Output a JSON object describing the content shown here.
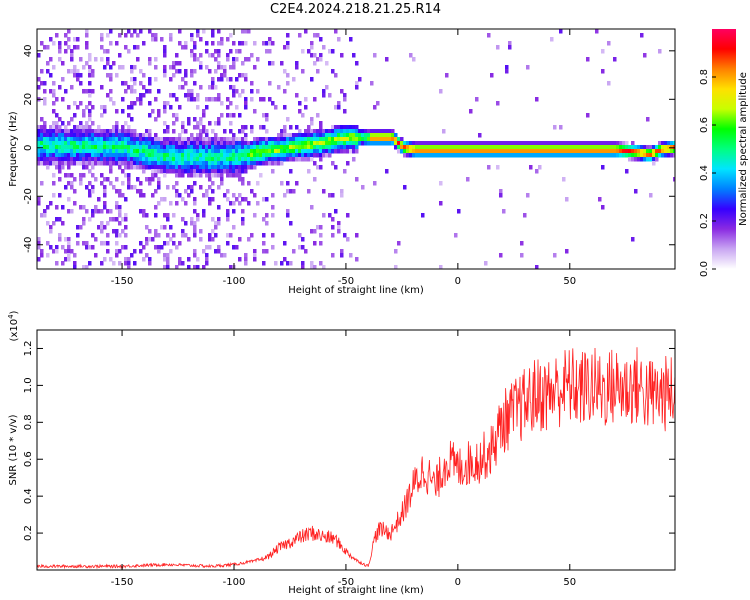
{
  "title": "C2E4.2024.218.21.25.R14",
  "chart_data": [
    {
      "type": "heatmap",
      "xlabel": "Height of straight line (km)",
      "ylabel": "Frequency (Hz)",
      "xlim": [
        -188,
        97
      ],
      "ylim": [
        -50,
        49
      ],
      "xticks": [
        -150,
        -100,
        -50,
        0,
        50
      ],
      "yticks": [
        -40,
        -20,
        0,
        20,
        40
      ],
      "colorbar": {
        "label": "Normalized spectral amplitude",
        "range": [
          0.0,
          1.0
        ],
        "ticks": [
          0.0,
          0.2,
          0.4,
          0.6,
          0.8
        ],
        "colors": [
          "#ffffff",
          "#c9a6f2",
          "#8a2be2",
          "#3500ff",
          "#0080ff",
          "#00e5ff",
          "#00ff80",
          "#00ff00",
          "#c8ff00",
          "#ffe000",
          "#ff8000",
          "#ff0000",
          "#ff0060"
        ]
      },
      "ridge": {
        "description_points_x": [
          -188,
          -150,
          -130,
          -100,
          -90,
          -75,
          -60,
          -50,
          -40,
          -30,
          -25,
          -20,
          -10,
          0,
          10,
          20,
          30,
          40,
          50,
          60,
          70,
          80,
          85,
          90,
          97
        ],
        "description_points_y": [
          2,
          1,
          -3,
          -3,
          -1,
          1,
          3,
          5,
          5,
          5,
          1,
          0,
          0,
          0,
          0,
          0,
          0,
          0,
          0,
          0,
          0,
          -1,
          -2,
          0,
          1
        ]
      }
    },
    {
      "type": "line",
      "xlabel": "Height of straight line (km)",
      "ylabel": "SNR (10 * v/v)",
      "yscale_label": "(x10",
      "yscale_exp": "4",
      "yscale_close": ")",
      "xlim": [
        -188,
        97
      ],
      "ylim": [
        0,
        1.3
      ],
      "xticks": [
        -150,
        -100,
        -50,
        0,
        50
      ],
      "yticks": [
        0.2,
        0.4,
        0.6,
        0.8,
        1.0,
        1.2
      ],
      "series": [
        {
          "color": "#ff2020",
          "x": [
            -188,
            -150,
            -130,
            -110,
            -100,
            -90,
            -85,
            -80,
            -75,
            -70,
            -65,
            -60,
            -55,
            -50,
            -45,
            -40,
            -37,
            -35,
            -30,
            -25,
            -20,
            -15,
            -10,
            -5,
            0,
            5,
            10,
            15,
            20,
            25,
            30,
            35,
            40,
            45,
            50,
            55,
            60,
            65,
            70,
            75,
            80,
            85,
            90,
            97
          ],
          "y": [
            0.02,
            0.02,
            0.03,
            0.02,
            0.03,
            0.05,
            0.07,
            0.12,
            0.15,
            0.18,
            0.2,
            0.18,
            0.17,
            0.1,
            0.05,
            0.02,
            0.18,
            0.22,
            0.2,
            0.3,
            0.45,
            0.55,
            0.45,
            0.6,
            0.55,
            0.58,
            0.6,
            0.65,
            0.8,
            0.85,
            0.9,
            0.95,
            0.95,
            0.98,
            1.0,
            0.98,
            1.0,
            0.97,
            1.0,
            0.98,
            1.0,
            0.95,
            0.95,
            0.96
          ]
        }
      ]
    }
  ]
}
